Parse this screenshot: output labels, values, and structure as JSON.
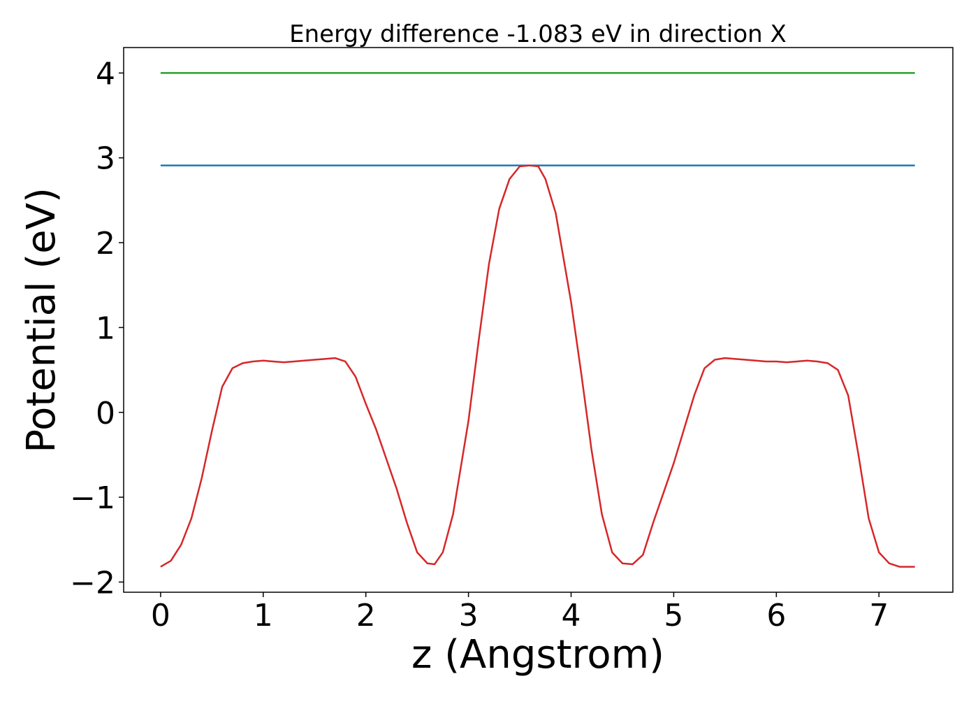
{
  "chart_data": {
    "type": "line",
    "title": "Energy difference -1.083 eV in direction X",
    "xlabel": "z (Angstrom)",
    "ylabel": "Potential (eV)",
    "xlim": [
      -0.36,
      7.72
    ],
    "ylim": [
      -2.12,
      4.3
    ],
    "grid": false,
    "legend": "none",
    "x_ticks": [
      {
        "value": 0,
        "label": "0"
      },
      {
        "value": 1,
        "label": "1"
      },
      {
        "value": 2,
        "label": "2"
      },
      {
        "value": 3,
        "label": "3"
      },
      {
        "value": 4,
        "label": "4"
      },
      {
        "value": 5,
        "label": "5"
      },
      {
        "value": 6,
        "label": "6"
      },
      {
        "value": 7,
        "label": "7"
      }
    ],
    "y_ticks": [
      {
        "value": -2,
        "label": "−2"
      },
      {
        "value": -1,
        "label": "−1"
      },
      {
        "value": 0,
        "label": "0"
      },
      {
        "value": 1,
        "label": "1"
      },
      {
        "value": 2,
        "label": "2"
      },
      {
        "value": 3,
        "label": "3"
      },
      {
        "value": 4,
        "label": "4"
      }
    ],
    "series": [
      {
        "color": "#2ca02c",
        "x": [
          0,
          7.35
        ],
        "y": [
          4.0,
          4.0
        ]
      },
      {
        "color": "#1f77b4",
        "x": [
          0,
          7.35
        ],
        "y": [
          2.91,
          2.91
        ]
      },
      {
        "color": "#d62728",
        "x": [
          0,
          0.1,
          0.2,
          0.3,
          0.4,
          0.5,
          0.6,
          0.7,
          0.8,
          0.9,
          1.0,
          1.1,
          1.2,
          1.3,
          1.4,
          1.5,
          1.6,
          1.7,
          1.8,
          1.9,
          2.0,
          2.1,
          2.2,
          2.3,
          2.4,
          2.5,
          2.6,
          2.67,
          2.75,
          2.85,
          3.0,
          3.1,
          3.2,
          3.3,
          3.4,
          3.5,
          3.6,
          3.68,
          3.75,
          3.85,
          4.0,
          4.1,
          4.2,
          4.3,
          4.4,
          4.5,
          4.6,
          4.7,
          4.8,
          4.9,
          5.0,
          5.1,
          5.2,
          5.3,
          5.4,
          5.5,
          5.6,
          5.7,
          5.8,
          5.9,
          6.0,
          6.1,
          6.2,
          6.3,
          6.4,
          6.5,
          6.6,
          6.7,
          6.8,
          6.9,
          7.0,
          7.1,
          7.2,
          7.3,
          7.35
        ],
        "y": [
          -1.82,
          -1.75,
          -1.56,
          -1.25,
          -0.78,
          -0.22,
          0.3,
          0.52,
          0.58,
          0.6,
          0.61,
          0.6,
          0.59,
          0.6,
          0.61,
          0.62,
          0.63,
          0.64,
          0.6,
          0.42,
          0.1,
          -0.2,
          -0.55,
          -0.9,
          -1.3,
          -1.65,
          -1.78,
          -1.79,
          -1.65,
          -1.2,
          -0.1,
          0.85,
          1.75,
          2.4,
          2.75,
          2.9,
          2.91,
          2.9,
          2.75,
          2.35,
          1.3,
          0.45,
          -0.45,
          -1.2,
          -1.65,
          -1.78,
          -1.79,
          -1.68,
          -1.3,
          -0.95,
          -0.6,
          -0.2,
          0.2,
          0.52,
          0.62,
          0.64,
          0.63,
          0.62,
          0.61,
          0.6,
          0.6,
          0.59,
          0.6,
          0.61,
          0.6,
          0.58,
          0.5,
          0.2,
          -0.5,
          -1.25,
          -1.65,
          -1.78,
          -1.82,
          -1.82,
          -1.82
        ]
      }
    ]
  }
}
